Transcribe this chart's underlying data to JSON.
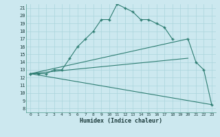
{
  "xlabel": "Humidex (Indice chaleur)",
  "bg_color": "#cce8ef",
  "line_color": "#2e7d72",
  "grid_color": "#aad4dc",
  "xlim": [
    -0.5,
    23.5
  ],
  "ylim": [
    7.5,
    21.5
  ],
  "xticks": [
    0,
    1,
    2,
    3,
    4,
    5,
    6,
    7,
    8,
    9,
    10,
    11,
    12,
    13,
    14,
    15,
    16,
    17,
    18,
    19,
    20,
    21,
    22,
    23
  ],
  "yticks": [
    8,
    9,
    10,
    11,
    12,
    13,
    14,
    15,
    16,
    17,
    18,
    19,
    20,
    21
  ],
  "curve1_x": [
    0,
    1,
    2,
    3,
    4,
    5,
    6,
    7,
    8,
    9,
    10,
    11,
    12,
    13,
    14,
    15,
    16,
    17,
    18
  ],
  "curve1_y": [
    12.5,
    12.5,
    12.5,
    13.0,
    13.0,
    14.5,
    16.0,
    17.0,
    18.0,
    19.5,
    19.5,
    21.5,
    21.0,
    20.5,
    19.5,
    19.5,
    19.0,
    18.5,
    17.0
  ],
  "curve2_x": [
    0,
    20,
    21,
    22,
    23
  ],
  "curve2_y": [
    12.5,
    17.0,
    14.0,
    13.0,
    8.5
  ],
  "curve3_x": [
    0,
    20
  ],
  "curve3_y": [
    12.5,
    14.5
  ],
  "curve4_x": [
    0,
    23
  ],
  "curve4_y": [
    12.5,
    8.5
  ]
}
